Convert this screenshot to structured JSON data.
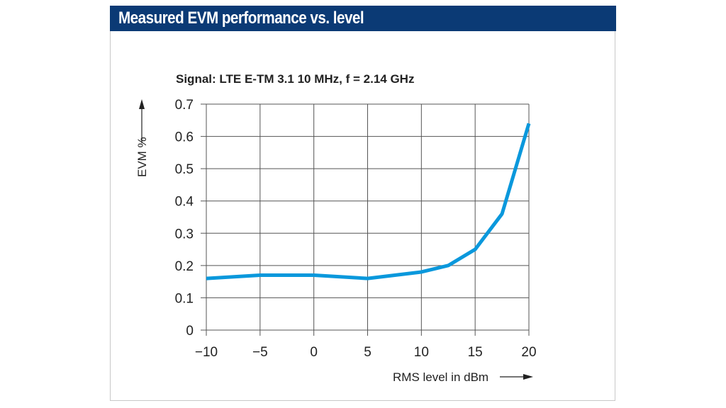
{
  "header": {
    "title": "Measured EVM performance vs. level"
  },
  "colors": {
    "header_bg": "#0b3a75",
    "series": "#0a98dc",
    "grid": "#555555"
  },
  "chart_data": {
    "type": "line",
    "title": "Measured EVM performance vs. level",
    "subtitle": "Signal: LTE E-TM 3.1 10 MHz, f = 2.14 GHz",
    "xlabel": "RMS level in dBm",
    "ylabel": "EVM %",
    "xlim": [
      -10,
      20
    ],
    "ylim": [
      0,
      0.7
    ],
    "xticks": [
      -10,
      -5,
      0,
      5,
      10,
      15,
      20
    ],
    "xtick_labels": [
      "−10",
      "−5",
      "0",
      "5",
      "10",
      "15",
      "20"
    ],
    "yticks": [
      0,
      0.1,
      0.2,
      0.3,
      0.4,
      0.5,
      0.6,
      0.7
    ],
    "ytick_labels": [
      "0",
      "0.1",
      "0.2",
      "0.3",
      "0.4",
      "0.5",
      "0.6",
      "0.7"
    ],
    "grid": true,
    "legend": "none",
    "series": [
      {
        "name": "EVM",
        "x": [
          -10,
          -5,
          0,
          5,
          10,
          12.5,
          15,
          17.5,
          20
        ],
        "y": [
          0.16,
          0.17,
          0.17,
          0.16,
          0.18,
          0.2,
          0.25,
          0.36,
          0.64
        ]
      }
    ]
  }
}
